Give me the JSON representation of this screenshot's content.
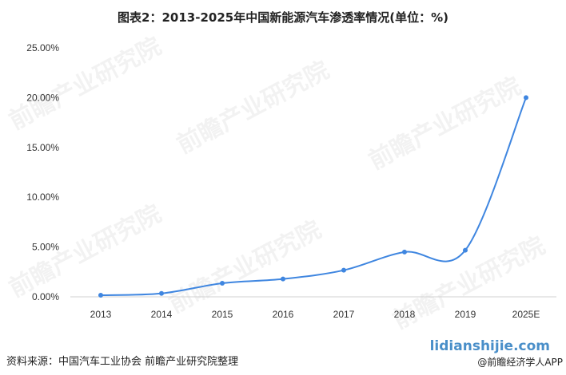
{
  "title": "图表2：2013-2025年中国新能源汽车渗透率情况(单位：%)",
  "source": "资料来源：中国汽车工业协会 前瞻产业研究院整理",
  "brand": {
    "url": "lidianshijie.com",
    "app": "@前瞻经济学人APP"
  },
  "watermark": "前瞻产业研究院",
  "chart_data": {
    "type": "line",
    "title": "图表2：2013-2025年中国新能源汽车渗透率情况(单位：%)",
    "xlabel": "",
    "ylabel": "",
    "categories": [
      "2013",
      "2014",
      "2015",
      "2016",
      "2017",
      "2018",
      "2019",
      "2025E"
    ],
    "values": [
      0.16,
      0.34,
      1.36,
      1.79,
      2.67,
      4.5,
      4.68,
      20.0
    ],
    "ylim": [
      0,
      25
    ],
    "yticks": [
      "0.00%",
      "5.00%",
      "10.00%",
      "15.00%",
      "20.00%",
      "25.00%"
    ],
    "smooth": true,
    "grid": false,
    "color": "#3f86e0"
  }
}
